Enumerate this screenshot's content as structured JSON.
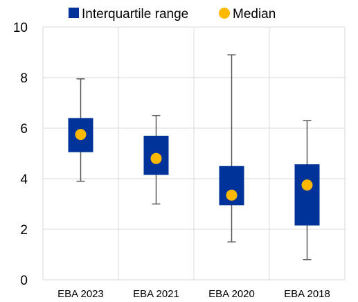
{
  "chart_data": {
    "type": "boxplot",
    "categories": [
      "EBA 2023",
      "EBA 2021",
      "EBA 2020",
      "EBA 2018"
    ],
    "series": [
      {
        "name": "Interquartile range",
        "q1": [
          5.05,
          4.15,
          2.95,
          2.15
        ],
        "q3": [
          6.4,
          5.7,
          4.5,
          4.57
        ]
      },
      {
        "name": "Median",
        "values": [
          5.75,
          4.8,
          3.35,
          3.75
        ]
      }
    ],
    "whisker_min": [
      3.9,
      3.0,
      1.5,
      0.8
    ],
    "whisker_max": [
      7.95,
      6.5,
      8.9,
      6.3
    ],
    "yticks": [
      0,
      2,
      4,
      6,
      8,
      10
    ],
    "ylim": [
      0,
      10
    ],
    "grid": true,
    "legend": "top",
    "colors": {
      "box": "#003399",
      "median": "#FFB800",
      "whisker": "#595959",
      "grid": "#D9D9D9"
    }
  }
}
